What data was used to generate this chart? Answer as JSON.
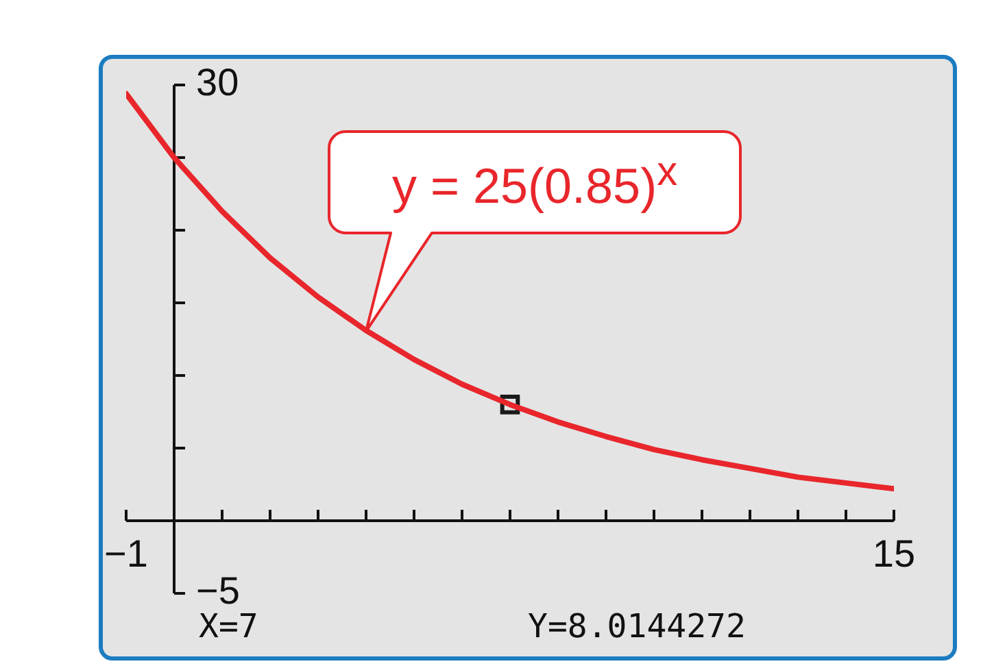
{
  "chart_data": {
    "type": "line",
    "x": [
      -1,
      0,
      1,
      2,
      3,
      4,
      5,
      6,
      7,
      8,
      9,
      10,
      11,
      12,
      13,
      14,
      15
    ],
    "series": [
      {
        "type": "line",
        "color": "#e8262b",
        "values": [
          29.4,
          25,
          21.3,
          18.1,
          15.4,
          13.1,
          11.1,
          9.4,
          8.0,
          6.8,
          5.8,
          4.9,
          4.2,
          3.6,
          3.0,
          2.6,
          2.2
        ]
      },
      {
        "type": "scatter",
        "color": "#1a1a1a",
        "x": [
          7
        ],
        "values": [
          8.0
        ],
        "marker": "square"
      }
    ],
    "xlim": [
      -1,
      15
    ],
    "ylim": [
      -5,
      30
    ],
    "xticks": [
      {
        "value": -1,
        "label": "−1"
      },
      {
        "value": 0,
        "label": null
      },
      {
        "value": 1,
        "label": null
      },
      {
        "value": 2,
        "label": null
      },
      {
        "value": 3,
        "label": null
      },
      {
        "value": 4,
        "label": null
      },
      {
        "value": 5,
        "label": null
      },
      {
        "value": 6,
        "label": null
      },
      {
        "value": 7,
        "label": null
      },
      {
        "value": 8,
        "label": null
      },
      {
        "value": 9,
        "label": null
      },
      {
        "value": 10,
        "label": null
      },
      {
        "value": 11,
        "label": null
      },
      {
        "value": 12,
        "label": null
      },
      {
        "value": 13,
        "label": null
      },
      {
        "value": 14,
        "label": null
      },
      {
        "value": 15,
        "label": "15"
      }
    ],
    "yticks": [
      {
        "value": -5,
        "label": "−5"
      },
      {
        "value": 0,
        "label": null
      },
      {
        "value": 5,
        "label": null
      },
      {
        "value": 10,
        "label": null
      },
      {
        "value": 15,
        "label": null
      },
      {
        "value": 20,
        "label": null
      },
      {
        "value": 25,
        "label": null
      },
      {
        "value": 30,
        "label": "30"
      }
    ],
    "annotations": [
      {
        "text": "y = 25(0.85)$^{x}$",
        "x": 4,
        "y": 13.05
      },
      "X=7",
      "Y=8.0144272"
    ],
    "grid": false,
    "legend": false,
    "marker": "none",
    "line_style": "solid"
  }
}
